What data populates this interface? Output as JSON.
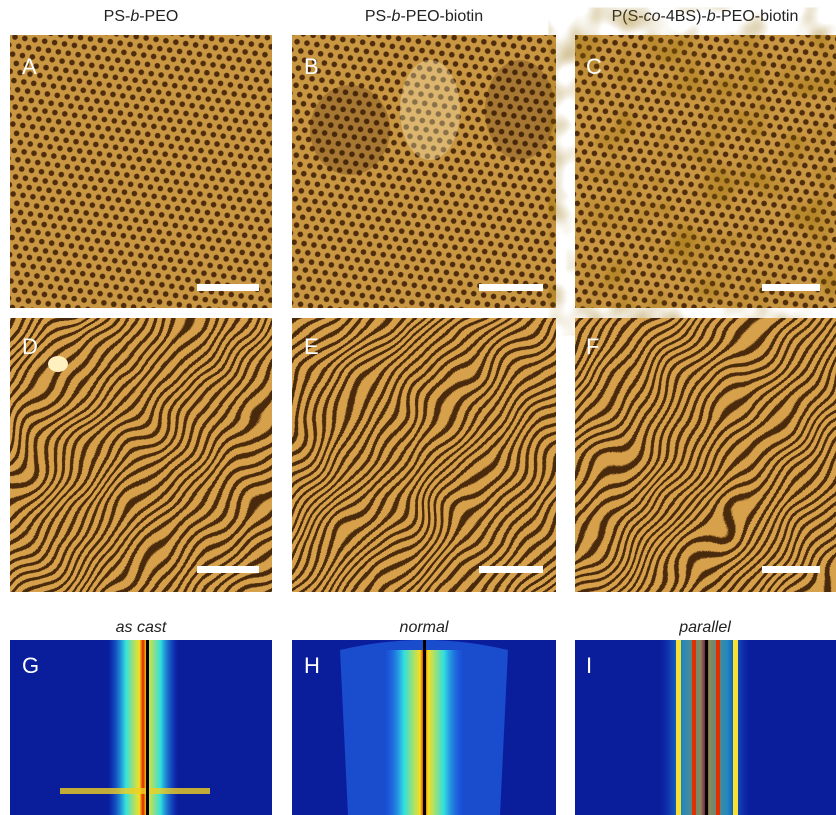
{
  "columns": [
    {
      "header_parts": [
        "PS-",
        "b",
        "-PEO"
      ]
    },
    {
      "header_parts": [
        "PS-",
        "b",
        "-PEO-biotin"
      ]
    },
    {
      "header_parts": [
        "P(S-",
        "co",
        "-4BS)-",
        "b",
        "-PEO-biotin"
      ]
    }
  ],
  "panels": [
    {
      "label": "A"
    },
    {
      "label": "B"
    },
    {
      "label": "C"
    },
    {
      "label": "D"
    },
    {
      "label": "E"
    },
    {
      "label": "F"
    },
    {
      "label": "G"
    },
    {
      "label": "H"
    },
    {
      "label": "I"
    }
  ],
  "saxs_titles": [
    "as cast",
    "normal",
    "parallel"
  ]
}
